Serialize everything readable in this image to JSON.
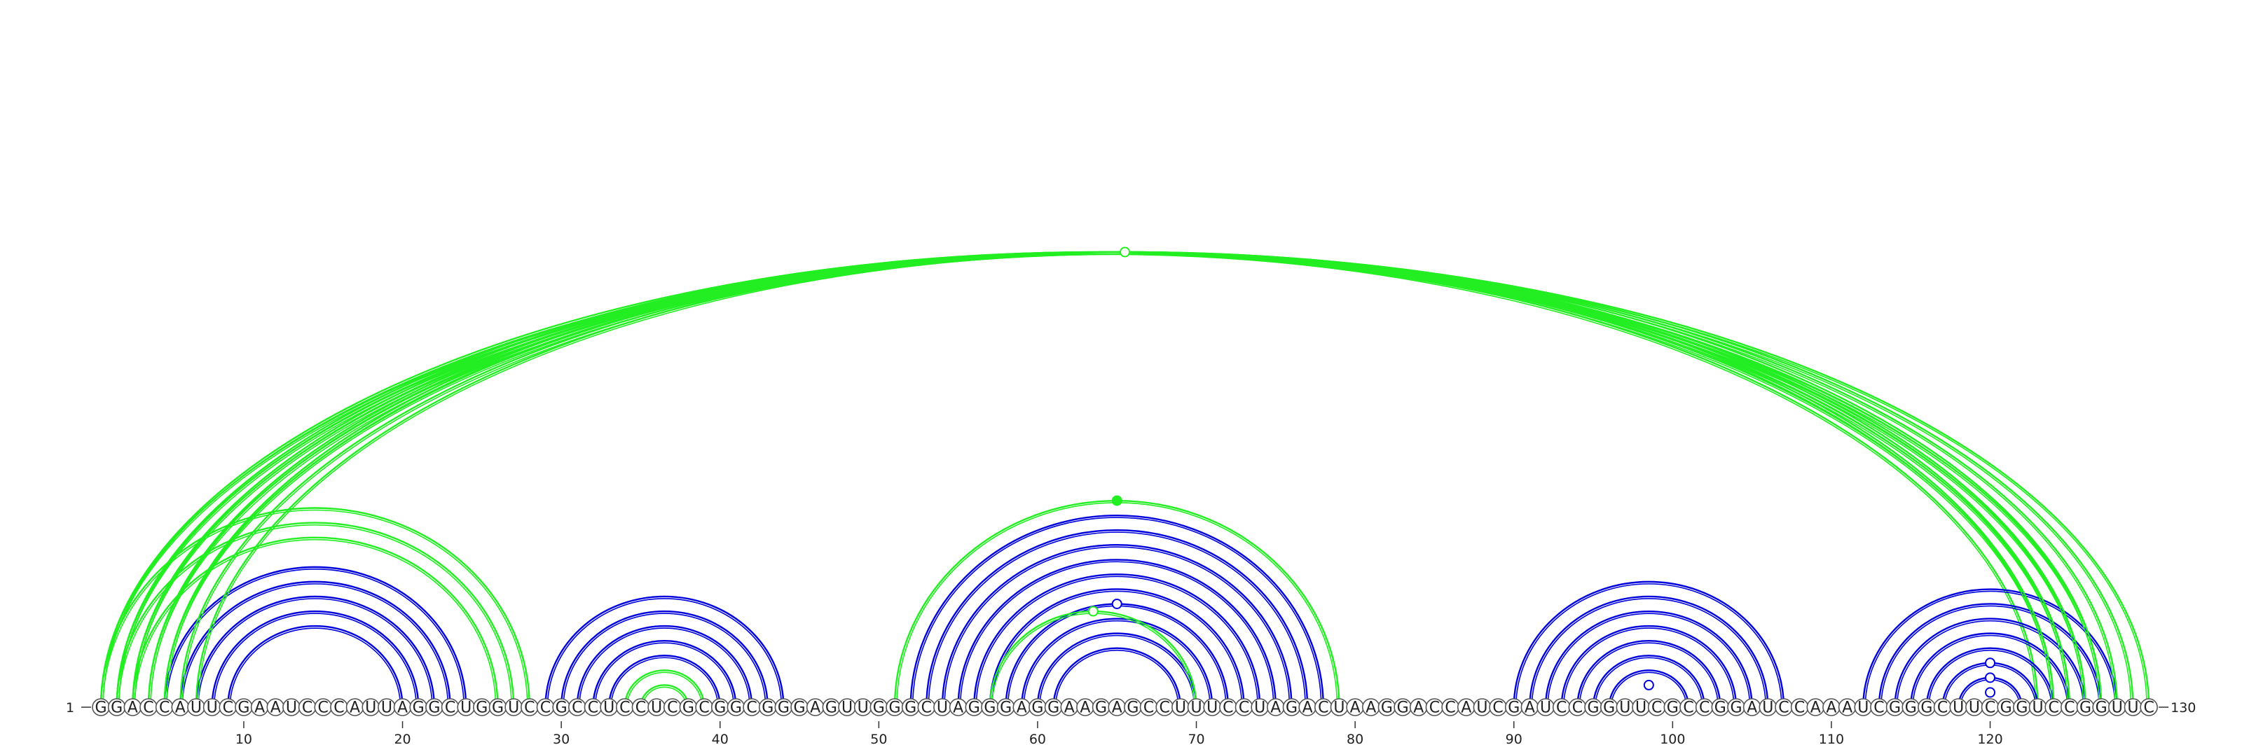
{
  "sequence": "GGACCAUUCGAAUCCCAUUAGGCUGGUCCGCCUCCUCGCGGCGGGAGUUGGGCUAGGGAGGAAGAGCCUUUCCUAGACUAAGGACCAUCGAUCCGGUUCGCCGGAUCCAAAUCGGGCUUCGGUCCGGUUC",
  "labels": {
    "start": "1",
    "end": "130"
  },
  "ticks": [
    "10",
    "20",
    "30",
    "40",
    "50",
    "60",
    "70",
    "80",
    "90",
    "100",
    "110",
    "120"
  ],
  "colors": {
    "blue": "#0000dd",
    "green": "#22ee22"
  },
  "arc_groups": [
    {
      "color": "blue",
      "pairs": [
        [
          5,
          24
        ],
        [
          6,
          23
        ],
        [
          7,
          22
        ],
        [
          8,
          21
        ],
        [
          9,
          20
        ]
      ]
    },
    {
      "color": "green",
      "pairs": [
        [
          1,
          28
        ],
        [
          2,
          27
        ],
        [
          3,
          26
        ]
      ]
    },
    {
      "color": "green",
      "pairs": [
        [
          1,
          127
        ],
        [
          2,
          126
        ],
        [
          3,
          125
        ],
        [
          4,
          124
        ],
        [
          5,
          123
        ]
      ]
    },
    {
      "color": "blue",
      "pairs": [
        [
          29,
          44
        ],
        [
          30,
          43
        ],
        [
          31,
          42
        ],
        [
          32,
          41
        ],
        [
          33,
          40
        ]
      ]
    },
    {
      "color": "green",
      "pairs": [
        [
          34,
          39
        ],
        [
          35,
          38
        ]
      ]
    },
    {
      "color": "blue",
      "pairs": [
        [
          52,
          78
        ],
        [
          53,
          77
        ],
        [
          54,
          76
        ],
        [
          55,
          75
        ],
        [
          56,
          74
        ],
        [
          57,
          73
        ],
        [
          58,
          72
        ],
        [
          59,
          71
        ],
        [
          60,
          70
        ],
        [
          61,
          69
        ]
      ]
    },
    {
      "color": "green",
      "pairs": [
        [
          51,
          79
        ],
        [
          57,
          70
        ]
      ]
    },
    {
      "color": "blue",
      "pairs": [
        [
          90,
          107
        ],
        [
          91,
          106
        ],
        [
          92,
          105
        ],
        [
          93,
          104
        ],
        [
          94,
          103
        ],
        [
          95,
          102
        ],
        [
          96,
          101
        ]
      ]
    },
    {
      "color": "blue",
      "pairs": [
        [
          112,
          128
        ],
        [
          113,
          127
        ],
        [
          114,
          126
        ],
        [
          115,
          125
        ],
        [
          116,
          124
        ],
        [
          117,
          123
        ],
        [
          118,
          122
        ]
      ]
    },
    {
      "color": "green",
      "pairs": [
        [
          1,
          130
        ],
        [
          2,
          129
        ],
        [
          3,
          128
        ],
        [
          4,
          127
        ],
        [
          5,
          126
        ],
        [
          6,
          125
        ],
        [
          7,
          124
        ]
      ]
    }
  ],
  "markers": [
    {
      "color": "green",
      "filled": false,
      "pair": [
        1,
        130
      ]
    },
    {
      "color": "green",
      "filled": true,
      "pair": [
        51,
        79
      ]
    },
    {
      "color": "blue",
      "filled": false,
      "pair": [
        58,
        72
      ]
    },
    {
      "color": "green",
      "filled": false,
      "pair": [
        57,
        70
      ]
    },
    {
      "color": "blue",
      "filled": false,
      "pair": [
        97,
        100
      ]
    },
    {
      "color": "blue",
      "filled": false,
      "pair": [
        117,
        123
      ]
    },
    {
      "color": "blue",
      "filled": false,
      "pair": [
        118,
        122
      ]
    },
    {
      "color": "blue",
      "filled": false,
      "pair": [
        119,
        121
      ]
    }
  ]
}
